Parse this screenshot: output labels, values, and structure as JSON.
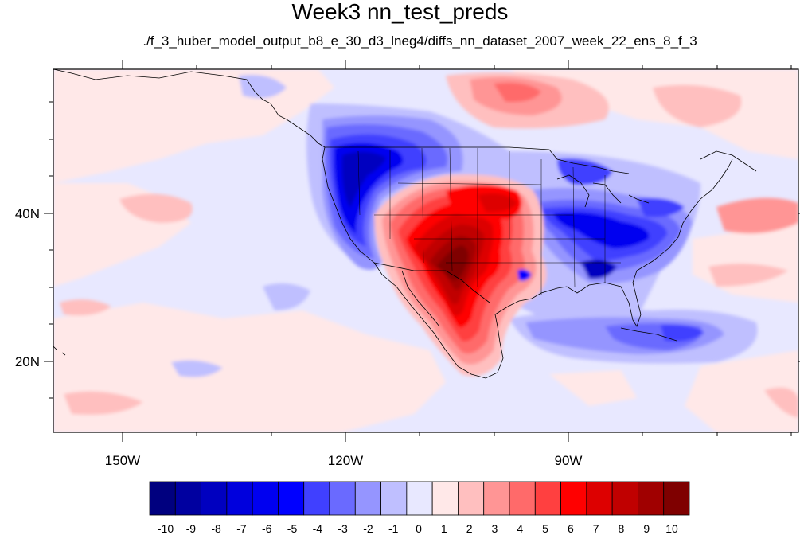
{
  "title": "Week3 nn_test_preds",
  "subtitle": "./f_3_huber_model_output_b8_e_30_d3_lneg4/diffs_nn_dataset_2007_week_22_ens_8_f_3",
  "axes": {
    "x_ticks": [
      {
        "label": "150W",
        "lon": -150
      },
      {
        "label": "120W",
        "lon": -120
      },
      {
        "label": "90W",
        "lon": -90
      }
    ],
    "y_ticks": [
      {
        "label": "40N",
        "lat": 40
      },
      {
        "label": "20N",
        "lat": 20
      }
    ],
    "lon_range": [
      -159.5,
      -60.5
    ],
    "lat_range": [
      11,
      59.5
    ]
  },
  "colorbar": {
    "labels": [
      "-10",
      "-9",
      "-8",
      "-7",
      "-6",
      "-5",
      "-4",
      "-3",
      "-2",
      "-1",
      "0",
      "1",
      "2",
      "3",
      "4",
      "5",
      "6",
      "7",
      "8",
      "9",
      "10"
    ],
    "colors": [
      "#00007f",
      "#0000a0",
      "#0000c0",
      "#0000dd",
      "#0000f0",
      "#0000ff",
      "#4040ff",
      "#6a6aff",
      "#9595ff",
      "#bfbfff",
      "#e8e8ff",
      "#ffe8e8",
      "#ffbfbf",
      "#ff9595",
      "#ff6a6a",
      "#ff4040",
      "#ff0000",
      "#dd0000",
      "#c00000",
      "#a00000",
      "#7f0000"
    ]
  },
  "colors": {
    "ocean_background": "#e8e8ff",
    "coastline": "#000000"
  }
}
